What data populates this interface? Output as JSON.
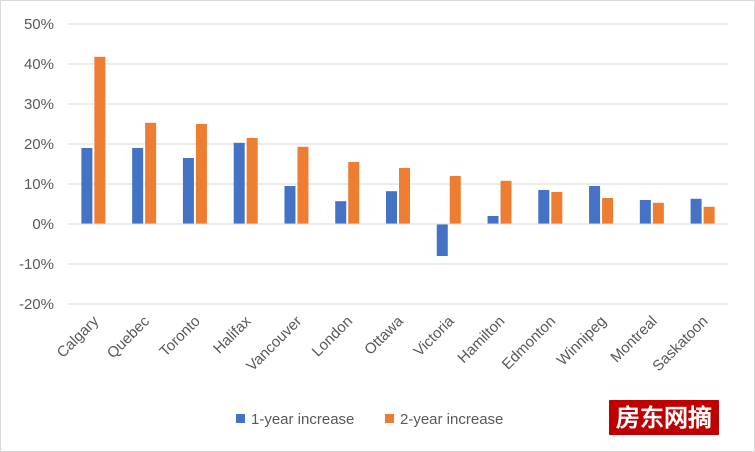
{
  "chart_data": {
    "type": "bar",
    "categories": [
      "Calgary",
      "Quebec",
      "Toronto",
      "Halifax",
      "Vancouver",
      "London",
      "Ottawa",
      "Victoria",
      "Hamilton",
      "Edmonton",
      "Winnipeg",
      "Montreal",
      "Saskatoon"
    ],
    "series": [
      {
        "name": "1-year increase",
        "color": "#4472c4",
        "values": [
          19.0,
          19.0,
          16.5,
          20.3,
          9.5,
          5.7,
          8.2,
          -8.0,
          2.0,
          8.5,
          9.5,
          6.0,
          6.3
        ]
      },
      {
        "name": "2-year increase",
        "color": "#ed7d31",
        "values": [
          41.8,
          25.3,
          25.0,
          21.5,
          19.3,
          15.5,
          14.0,
          12.0,
          10.8,
          8.0,
          6.5,
          5.3,
          4.3
        ]
      }
    ],
    "yticks": [
      "50%",
      "40%",
      "30%",
      "20%",
      "10%",
      "0%",
      "-10%",
      "-20%"
    ],
    "ylim": [
      -20,
      50
    ],
    "title": "",
    "xlabel": "",
    "ylabel": "",
    "grid": true,
    "legend_position": "bottom"
  },
  "watermark": {
    "text": "房东网摘",
    "color": "#c00000"
  }
}
